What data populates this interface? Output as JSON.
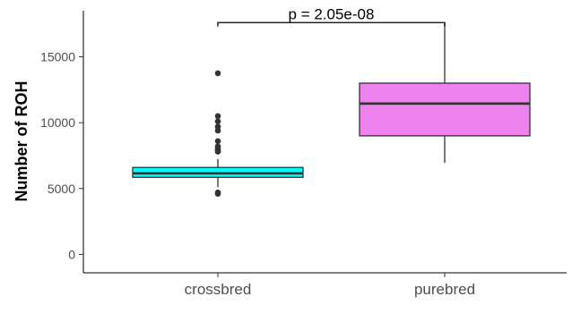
{
  "chart_data": {
    "type": "boxplot",
    "ylabel": "Number of ROH",
    "xlabel": "",
    "ylim": [
      -1400,
      18500
    ],
    "yticks": [
      0,
      5000,
      10000,
      15000
    ],
    "ytick_labels": [
      "0",
      "5000",
      "10000",
      "15000"
    ],
    "grid": false,
    "categories": [
      "crossbred",
      "purebred"
    ],
    "boxes": [
      {
        "category": "crossbred",
        "min": 5100,
        "q1": 5850,
        "median": 6150,
        "q3": 6600,
        "max": 7250,
        "outliers": [
          4600,
          4700,
          7800,
          7900,
          8000,
          8200,
          8600,
          9400,
          9700,
          10100,
          10500,
          13750
        ],
        "fill": "#00ffff"
      },
      {
        "category": "purebred",
        "min": 6950,
        "q1": 9000,
        "median": 11450,
        "q3": 13000,
        "max": 17600,
        "outliers": [],
        "fill": "#ee82ee"
      }
    ],
    "annotation": {
      "text": "p = 2.05e-08",
      "from": "crossbred",
      "to": "purebred",
      "y": 17600
    }
  }
}
